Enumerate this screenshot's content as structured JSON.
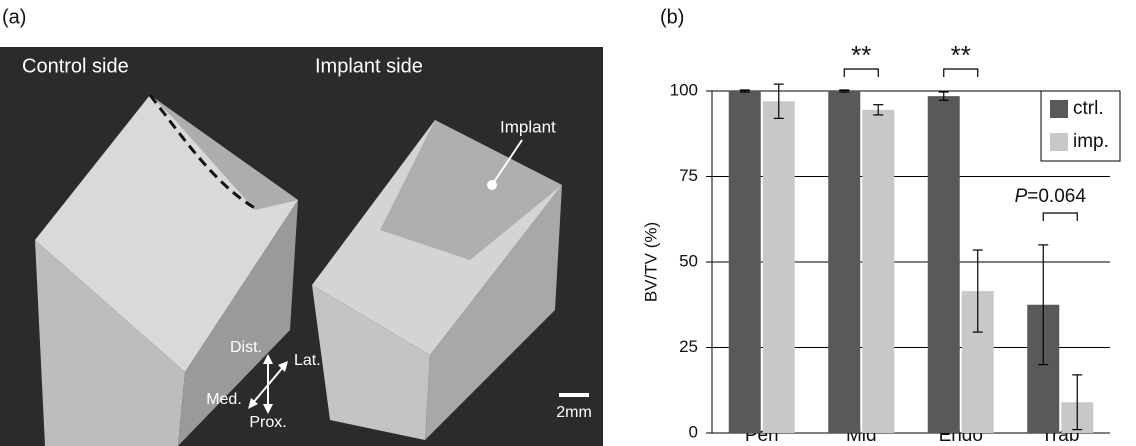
{
  "panel_labels": {
    "a": "(a)",
    "b": "(b)"
  },
  "image_labels": {
    "left": "Control side",
    "right": "Implant side",
    "implant": "Implant",
    "dist": "Dist.",
    "lat": "Lat.",
    "med": "Med.",
    "prox": "Prox.",
    "scale": "2mm"
  },
  "chart_data": {
    "type": "bar",
    "y_label": "BV/TV (%)",
    "categories": [
      "Peri",
      "Mid",
      "Endo",
      "Trab"
    ],
    "series": [
      {
        "name": "ctrl.",
        "color": "#595959",
        "values": [
          100,
          100,
          98.5,
          37.5
        ],
        "errors": [
          0.3,
          0.3,
          1.2,
          17.5
        ]
      },
      {
        "name": "imp.",
        "color": "#c8c8c8",
        "values": [
          97,
          94.5,
          41.5,
          9
        ],
        "errors": [
          5,
          1.5,
          12,
          8
        ]
      }
    ],
    "ylim": [
      0,
      100
    ],
    "yticks": [
      0,
      25,
      50,
      75,
      100
    ],
    "grid": true,
    "legend": "upper right",
    "annotations": [
      "**",
      "**",
      "P=0.064"
    ]
  }
}
